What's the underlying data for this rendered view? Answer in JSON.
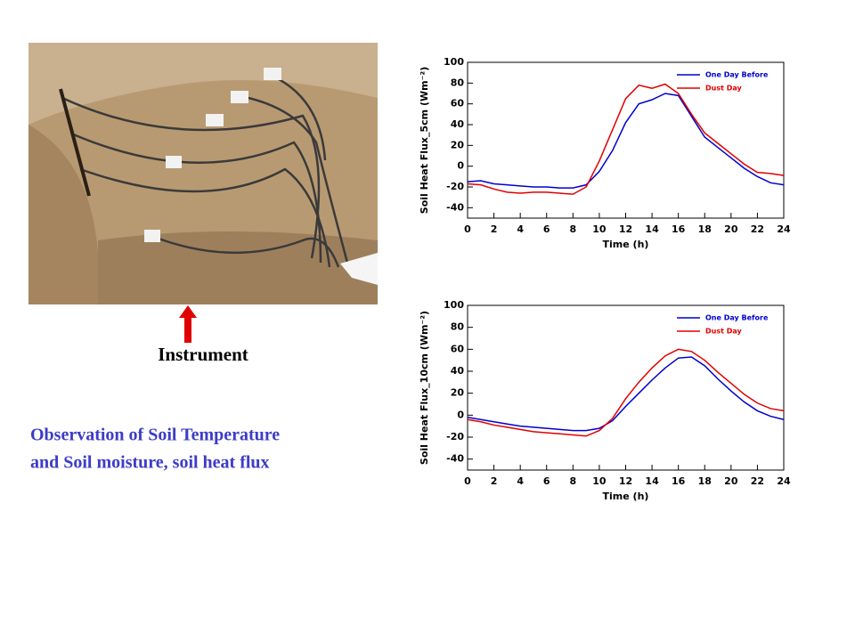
{
  "labels": {
    "instrument": "Instrument",
    "caption": [
      "Observation of Soil Temperature",
      "and Soil moisture, soil heat flux"
    ]
  },
  "chart_data": [
    {
      "type": "line",
      "xlabel": "Time (h)",
      "ylabel": "Soil Heat Flux_5cm (Wm⁻²)",
      "x": [
        0,
        1,
        2,
        3,
        4,
        5,
        6,
        7,
        8,
        9,
        10,
        11,
        12,
        13,
        14,
        15,
        16,
        17,
        18,
        19,
        20,
        21,
        22,
        23,
        24
      ],
      "series": [
        {
          "name": "One Day Before",
          "color": "#0000cc",
          "values": [
            -15,
            -14,
            -17,
            -18,
            -19,
            -20,
            -20,
            -21,
            -21,
            -18,
            -5,
            15,
            42,
            60,
            64,
            70,
            68,
            48,
            28,
            18,
            8,
            -2,
            -10,
            -16,
            -18
          ]
        },
        {
          "name": "Dust Day",
          "color": "#e00000",
          "values": [
            -17,
            -18,
            -22,
            -25,
            -26,
            -25,
            -25,
            -26,
            -27,
            -20,
            5,
            35,
            65,
            78,
            75,
            79,
            70,
            50,
            32,
            22,
            12,
            2,
            -6,
            -7,
            -9
          ]
        }
      ],
      "xlim": [
        0,
        24
      ],
      "xticks": [
        0,
        2,
        4,
        6,
        8,
        10,
        12,
        14,
        16,
        18,
        20,
        22,
        24
      ],
      "ylim": [
        -50,
        100
      ],
      "yticks": [
        -40,
        -20,
        0,
        20,
        40,
        60,
        80,
        100
      ],
      "legend": "upper right"
    },
    {
      "type": "line",
      "xlabel": "Time (h)",
      "ylabel": "Soil Heat Flux_10cm (Wm⁻²)",
      "x": [
        0,
        1,
        2,
        3,
        4,
        5,
        6,
        7,
        8,
        9,
        10,
        11,
        12,
        13,
        14,
        15,
        16,
        17,
        18,
        19,
        20,
        21,
        22,
        23,
        24
      ],
      "series": [
        {
          "name": "One Day Before",
          "color": "#0000cc",
          "values": [
            -2,
            -4,
            -6,
            -8,
            -10,
            -11,
            -12,
            -13,
            -14,
            -14,
            -12,
            -5,
            8,
            20,
            32,
            43,
            52,
            53,
            45,
            33,
            22,
            12,
            4,
            -1,
            -4
          ]
        },
        {
          "name": "Dust Day",
          "color": "#e00000",
          "values": [
            -4,
            -6,
            -9,
            -11,
            -13,
            -15,
            -16,
            -17,
            -18,
            -19,
            -14,
            -3,
            15,
            30,
            43,
            54,
            60,
            58,
            50,
            39,
            29,
            19,
            11,
            6,
            4
          ]
        }
      ],
      "xlim": [
        0,
        24
      ],
      "xticks": [
        0,
        2,
        4,
        6,
        8,
        10,
        12,
        14,
        16,
        18,
        20,
        22,
        24
      ],
      "ylim": [
        -50,
        100
      ],
      "yticks": [
        -40,
        -20,
        0,
        20,
        40,
        60,
        80,
        100
      ],
      "legend": "upper right"
    }
  ]
}
